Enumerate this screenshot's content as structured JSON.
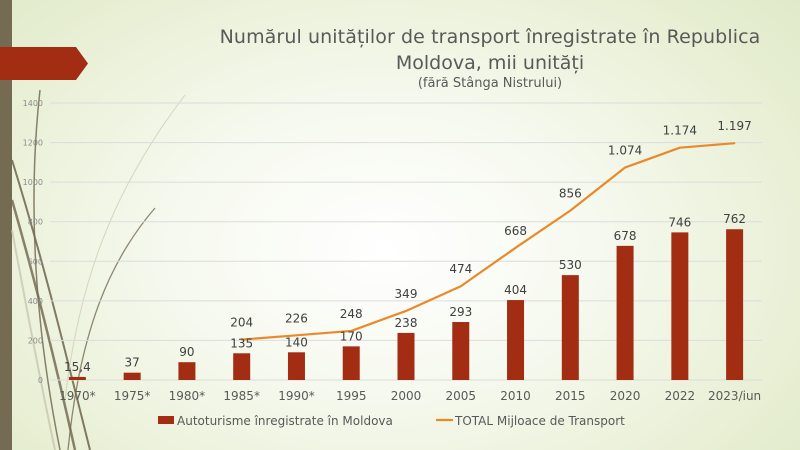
{
  "slide": {
    "title_line1": "Numărul unităților de transport înregistrate în Republica",
    "title_line2": "Moldova, mii unități",
    "subtitle": "(fără Stânga Nistrului)"
  },
  "colors": {
    "bar": "#a22d12",
    "line": "#e98a2a",
    "accent_bar": "#756b52",
    "grid": "#dcdcdc"
  },
  "chart_data": {
    "type": "bar",
    "title": "Numărul unităților de transport înregistrate în Republica Moldova, mii unități",
    "subtitle": "(fără Stânga Nistrului)",
    "xlabel": "",
    "ylabel": "",
    "ylim": [
      0,
      1400
    ],
    "yticks": [
      0,
      200,
      400,
      600,
      800,
      1000,
      1200,
      1400
    ],
    "grid": true,
    "legend_position": "bottom",
    "categories": [
      "1970*",
      "1975*",
      "1980*",
      "1985*",
      "1990*",
      "1995",
      "2000",
      "2005",
      "2010",
      "2015",
      "2020",
      "2022",
      "2023/iun"
    ],
    "series": [
      {
        "name": "Autoturisme înregistrate în Moldova",
        "type": "bar",
        "values": [
          15.4,
          37,
          90,
          135,
          140,
          170,
          238,
          293,
          404,
          530,
          678,
          746,
          762
        ],
        "labels": [
          "15,4",
          "37",
          "90",
          "135",
          "140",
          "170",
          "238",
          "293",
          "404",
          "530",
          "678",
          "746",
          "762"
        ]
      },
      {
        "name": "TOTAL Mijloace de Transport",
        "type": "line",
        "values": [
          null,
          null,
          null,
          204,
          226,
          248,
          349,
          474,
          668,
          856,
          1074,
          1174,
          1197
        ],
        "labels": [
          null,
          null,
          null,
          "204",
          "226",
          "248",
          "349",
          "474",
          "668",
          "856",
          "1.074",
          "1.174",
          "1.197"
        ]
      }
    ]
  }
}
